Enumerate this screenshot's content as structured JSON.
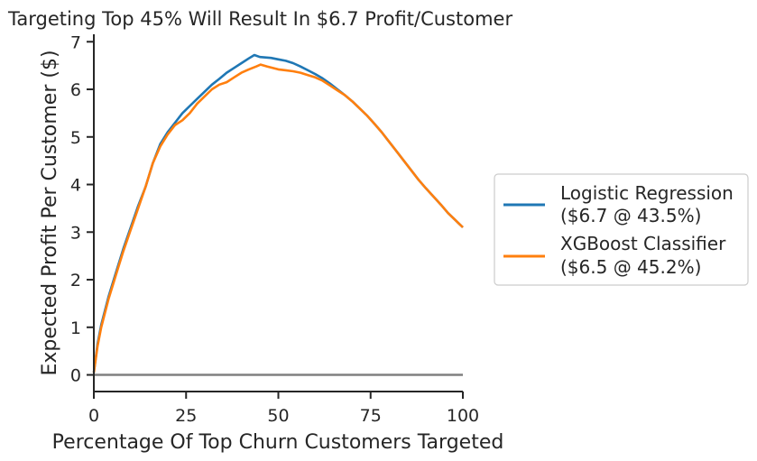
{
  "chart_data": {
    "type": "line",
    "title": "Targeting Top 45% Will Result In $6.7 Profit/Customer",
    "xlabel": "Percentage Of Top Churn Customers Targeted",
    "ylabel": "Expected Profit Per Customer ($)",
    "xlim": [
      0,
      100
    ],
    "ylim": [
      -0.35,
      7.1
    ],
    "xticks": [
      0,
      25,
      50,
      75,
      100
    ],
    "yticks": [
      0,
      1,
      2,
      3,
      4,
      5,
      6,
      7
    ],
    "grid": false,
    "legend_position": "outside-right",
    "baseline": {
      "y": 0,
      "color": "#808080"
    },
    "series": [
      {
        "name": "Logistic Regression\n($6.7 @ 43.5%)",
        "legend_lines": [
          "Logistic Regression",
          "($6.7 @ 43.5%)"
        ],
        "color": "#1f77b4",
        "x": [
          0,
          1,
          2,
          4,
          6,
          8,
          10,
          12,
          14,
          16,
          18,
          20,
          22,
          24,
          26,
          28,
          30,
          32,
          34,
          36,
          38,
          40,
          42,
          43.5,
          45,
          48,
          50,
          52,
          54,
          56,
          58,
          60,
          62,
          64,
          66,
          68,
          70,
          72,
          74,
          76,
          78,
          80,
          82,
          84,
          86,
          88,
          90,
          92,
          94,
          96,
          98,
          100
        ],
        "y": [
          0.05,
          0.65,
          1.05,
          1.65,
          2.15,
          2.65,
          3.1,
          3.55,
          3.95,
          4.45,
          4.85,
          5.1,
          5.3,
          5.5,
          5.65,
          5.8,
          5.95,
          6.1,
          6.22,
          6.35,
          6.45,
          6.55,
          6.65,
          6.72,
          6.68,
          6.66,
          6.63,
          6.6,
          6.55,
          6.48,
          6.4,
          6.32,
          6.23,
          6.12,
          6.0,
          5.88,
          5.75,
          5.6,
          5.45,
          5.28,
          5.1,
          4.9,
          4.7,
          4.5,
          4.3,
          4.1,
          3.92,
          3.75,
          3.58,
          3.4,
          3.25,
          3.1
        ]
      },
      {
        "name": "XGBoost Classifier\n($6.5 @ 45.2%)",
        "legend_lines": [
          "XGBoost Classifier",
          "($6.5 @ 45.2%)"
        ],
        "color": "#ff7f0e",
        "x": [
          0,
          1,
          2,
          4,
          6,
          8,
          10,
          12,
          14,
          16,
          18,
          20,
          22,
          24,
          26,
          28,
          30,
          32,
          34,
          36,
          38,
          40,
          42,
          44,
          45.2,
          47,
          50,
          52,
          54,
          56,
          58,
          60,
          62,
          64,
          66,
          68,
          70,
          72,
          74,
          76,
          78,
          80,
          82,
          84,
          86,
          88,
          90,
          92,
          94,
          96,
          98,
          100
        ],
        "y": [
          0.05,
          0.6,
          1.0,
          1.6,
          2.1,
          2.6,
          3.05,
          3.5,
          3.95,
          4.45,
          4.8,
          5.05,
          5.25,
          5.35,
          5.5,
          5.7,
          5.85,
          6.0,
          6.1,
          6.15,
          6.25,
          6.35,
          6.42,
          6.48,
          6.52,
          6.48,
          6.42,
          6.4,
          6.38,
          6.35,
          6.3,
          6.25,
          6.18,
          6.08,
          5.98,
          5.88,
          5.75,
          5.6,
          5.45,
          5.28,
          5.1,
          4.9,
          4.7,
          4.5,
          4.3,
          4.1,
          3.92,
          3.75,
          3.58,
          3.4,
          3.25,
          3.1
        ]
      }
    ]
  }
}
